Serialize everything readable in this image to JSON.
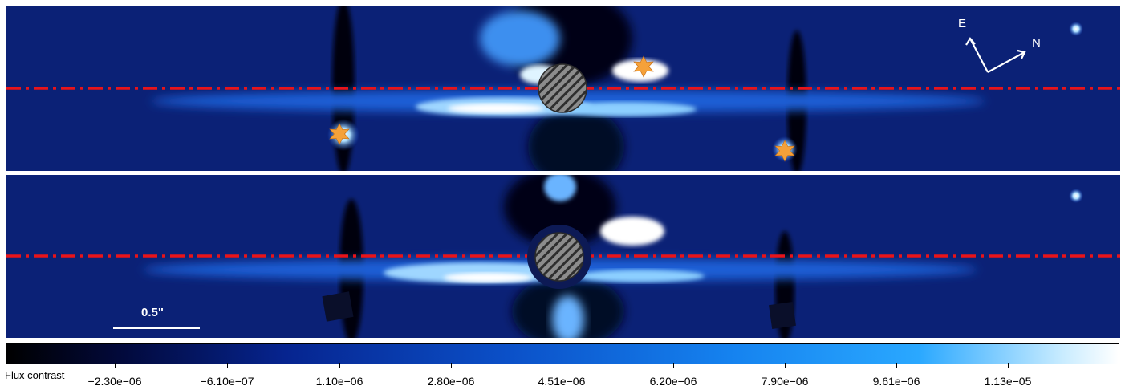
{
  "figure": {
    "compass": {
      "east": "E",
      "north": "N",
      "icon": "compass-arrows-icon"
    },
    "scale_bar_label": "0.5\"",
    "colorbar": {
      "label": "Flux contrast",
      "ticks": [
        "−2.30e−06",
        "−6.10e−07",
        "1.10e−06",
        "2.80e−06",
        "4.51e−06",
        "6.20e−06",
        "7.90e−06",
        "9.61e−06",
        "1.13e−05"
      ],
      "colormap": [
        "#000000",
        "#06248f",
        "#1582ef",
        "#ffffff"
      ]
    },
    "colors": {
      "background_noise": "#0a1d6e",
      "reference_line": "#e8141a",
      "star_marker": "#f5a13a",
      "mask": "#8a8a8a"
    },
    "markers": {
      "top_panel_star_count": 3,
      "icon": "star-marker-icon"
    }
  }
}
